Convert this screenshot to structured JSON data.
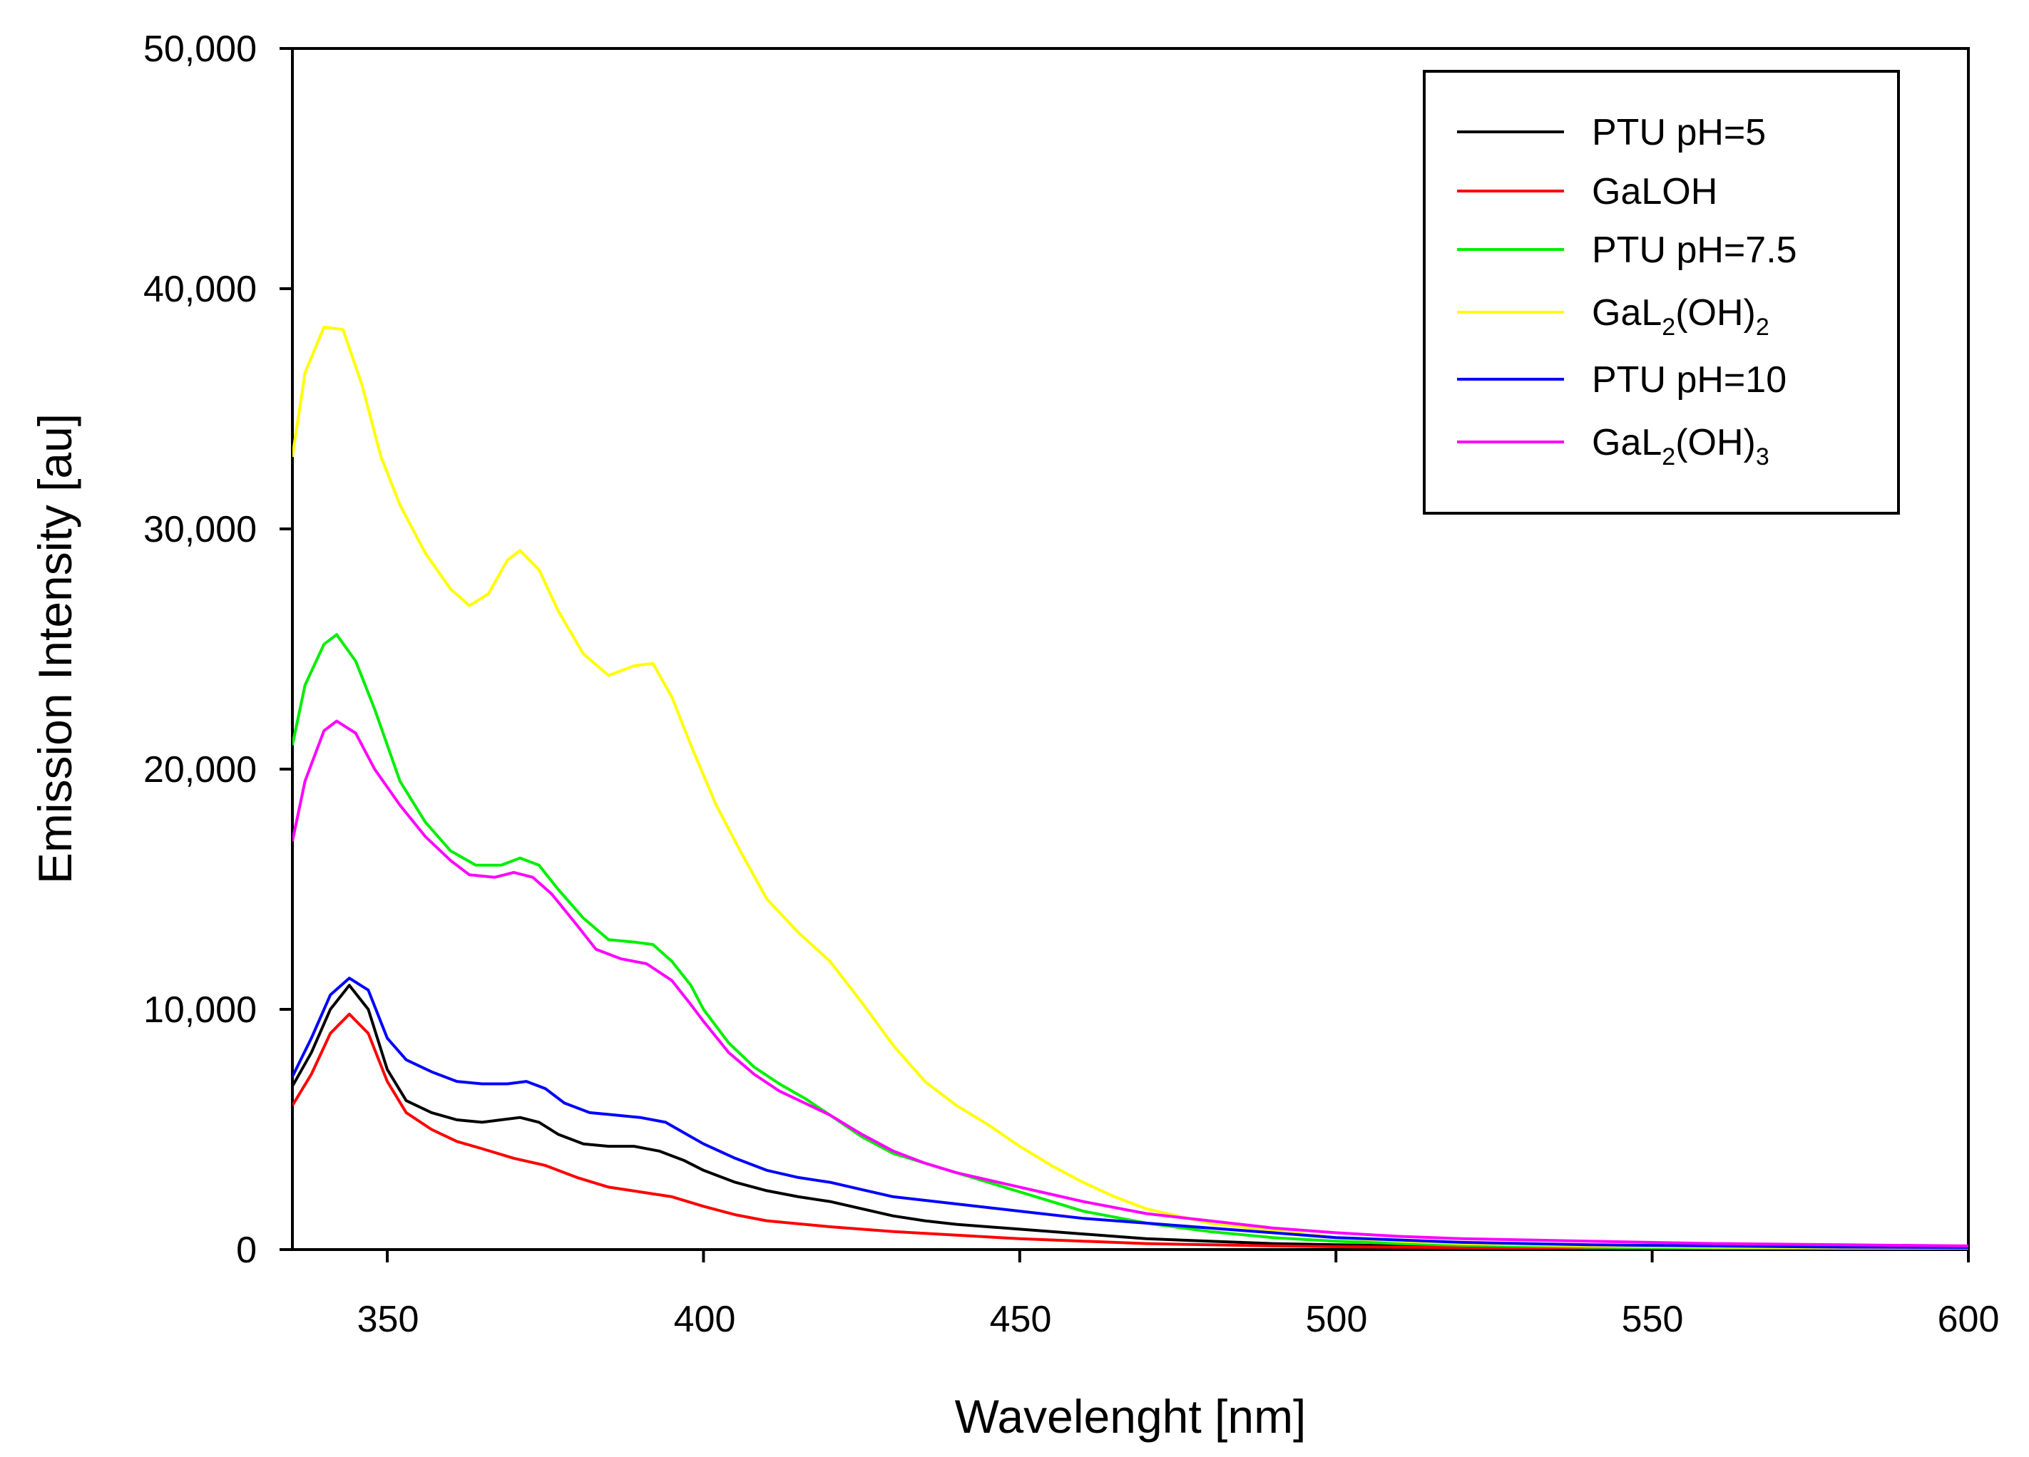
{
  "chart_data": {
    "type": "line",
    "title": "",
    "xlabel": "Wavelenght [nm]",
    "ylabel": "Emission Intensity [au]",
    "xlim": [
      335,
      600
    ],
    "ylim": [
      0,
      50000
    ],
    "x_ticks": [
      350,
      400,
      450,
      500,
      550,
      600
    ],
    "x_tick_labels": [
      "350",
      "400",
      "450",
      "500",
      "550",
      "600"
    ],
    "y_ticks": [
      0,
      10000,
      20000,
      30000,
      40000,
      50000
    ],
    "y_tick_labels": [
      "0",
      "10,000",
      "20,000",
      "30,000",
      "40,000",
      "50,000"
    ],
    "grid": false,
    "legend_position": "top-right",
    "series": [
      {
        "name": "PTU pH=5",
        "legend_main": "PTU pH=5",
        "legend_sub1": "",
        "legend_mid": "",
        "legend_sub2": "",
        "color": "#000000",
        "points": [
          [
            335,
            6800
          ],
          [
            338,
            8200
          ],
          [
            341,
            10000
          ],
          [
            344,
            11000
          ],
          [
            347,
            10000
          ],
          [
            350,
            7500
          ],
          [
            353,
            6200
          ],
          [
            357,
            5700
          ],
          [
            361,
            5400
          ],
          [
            365,
            5300
          ],
          [
            368,
            5400
          ],
          [
            371,
            5500
          ],
          [
            374,
            5300
          ],
          [
            377,
            4800
          ],
          [
            381,
            4400
          ],
          [
            385,
            4300
          ],
          [
            389,
            4300
          ],
          [
            393,
            4100
          ],
          [
            397,
            3700
          ],
          [
            400,
            3300
          ],
          [
            405,
            2800
          ],
          [
            410,
            2450
          ],
          [
            415,
            2200
          ],
          [
            420,
            2000
          ],
          [
            425,
            1700
          ],
          [
            430,
            1400
          ],
          [
            435,
            1200
          ],
          [
            440,
            1050
          ],
          [
            450,
            850
          ],
          [
            460,
            650
          ],
          [
            470,
            450
          ],
          [
            480,
            350
          ],
          [
            490,
            250
          ],
          [
            500,
            200
          ],
          [
            520,
            120
          ],
          [
            540,
            80
          ],
          [
            560,
            50
          ],
          [
            580,
            40
          ],
          [
            600,
            30
          ]
        ]
      },
      {
        "name": "GaLOH",
        "legend_main": "GaLOH",
        "legend_sub1": "",
        "legend_mid": "",
        "legend_sub2": "",
        "color": "#ff0000",
        "points": [
          [
            335,
            6000
          ],
          [
            338,
            7300
          ],
          [
            341,
            9000
          ],
          [
            344,
            9800
          ],
          [
            347,
            9000
          ],
          [
            350,
            7000
          ],
          [
            353,
            5700
          ],
          [
            357,
            5000
          ],
          [
            361,
            4500
          ],
          [
            365,
            4200
          ],
          [
            370,
            3800
          ],
          [
            375,
            3500
          ],
          [
            380,
            3000
          ],
          [
            385,
            2600
          ],
          [
            390,
            2400
          ],
          [
            395,
            2200
          ],
          [
            400,
            1800
          ],
          [
            405,
            1450
          ],
          [
            410,
            1200
          ],
          [
            420,
            950
          ],
          [
            430,
            750
          ],
          [
            440,
            600
          ],
          [
            450,
            450
          ],
          [
            460,
            350
          ],
          [
            470,
            250
          ],
          [
            480,
            200
          ],
          [
            490,
            150
          ],
          [
            500,
            120
          ],
          [
            520,
            80
          ],
          [
            540,
            60
          ],
          [
            560,
            40
          ],
          [
            580,
            30
          ],
          [
            600,
            20
          ]
        ]
      },
      {
        "name": "PTU pH=7.5",
        "legend_main": "PTU pH=7.5",
        "legend_sub1": "",
        "legend_mid": "",
        "legend_sub2": "",
        "color": "#00ee00",
        "points": [
          [
            335,
            21000
          ],
          [
            337,
            23500
          ],
          [
            340,
            25200
          ],
          [
            342,
            25600
          ],
          [
            345,
            24500
          ],
          [
            348,
            22500
          ],
          [
            352,
            19500
          ],
          [
            356,
            17800
          ],
          [
            360,
            16600
          ],
          [
            364,
            16000
          ],
          [
            368,
            16000
          ],
          [
            371,
            16300
          ],
          [
            374,
            16000
          ],
          [
            377,
            15000
          ],
          [
            381,
            13800
          ],
          [
            385,
            12900
          ],
          [
            389,
            12800
          ],
          [
            392,
            12700
          ],
          [
            395,
            12000
          ],
          [
            398,
            11000
          ],
          [
            400,
            10000
          ],
          [
            404,
            8600
          ],
          [
            408,
            7600
          ],
          [
            412,
            6900
          ],
          [
            416,
            6300
          ],
          [
            420,
            5600
          ],
          [
            425,
            4700
          ],
          [
            430,
            4000
          ],
          [
            435,
            3600
          ],
          [
            440,
            3200
          ],
          [
            445,
            2800
          ],
          [
            450,
            2400
          ],
          [
            455,
            2000
          ],
          [
            460,
            1600
          ],
          [
            470,
            1100
          ],
          [
            480,
            750
          ],
          [
            490,
            500
          ],
          [
            500,
            350
          ],
          [
            510,
            250
          ],
          [
            520,
            180
          ],
          [
            540,
            100
          ],
          [
            560,
            60
          ],
          [
            580,
            40
          ],
          [
            600,
            30
          ]
        ]
      },
      {
        "name": "GaL2(OH)2",
        "legend_main": "GaL",
        "legend_sub1": "2",
        "legend_mid": "(OH)",
        "legend_sub2": "2",
        "color": "#ffff00",
        "points": [
          [
            335,
            33000
          ],
          [
            337,
            36500
          ],
          [
            340,
            38400
          ],
          [
            343,
            38300
          ],
          [
            346,
            36000
          ],
          [
            349,
            33000
          ],
          [
            352,
            31000
          ],
          [
            356,
            29000
          ],
          [
            360,
            27500
          ],
          [
            363,
            26800
          ],
          [
            366,
            27300
          ],
          [
            369,
            28700
          ],
          [
            371,
            29100
          ],
          [
            374,
            28300
          ],
          [
            377,
            26600
          ],
          [
            381,
            24800
          ],
          [
            385,
            23900
          ],
          [
            389,
            24300
          ],
          [
            392,
            24400
          ],
          [
            395,
            23000
          ],
          [
            398,
            21000
          ],
          [
            402,
            18500
          ],
          [
            406,
            16500
          ],
          [
            410,
            14600
          ],
          [
            415,
            13200
          ],
          [
            420,
            12000
          ],
          [
            425,
            10300
          ],
          [
            430,
            8500
          ],
          [
            435,
            7000
          ],
          [
            440,
            6000
          ],
          [
            445,
            5200
          ],
          [
            450,
            4300
          ],
          [
            455,
            3500
          ],
          [
            460,
            2800
          ],
          [
            465,
            2200
          ],
          [
            470,
            1700
          ],
          [
            475,
            1400
          ],
          [
            480,
            1100
          ],
          [
            485,
            950
          ],
          [
            490,
            800
          ],
          [
            500,
            500
          ],
          [
            510,
            350
          ],
          [
            520,
            250
          ],
          [
            540,
            150
          ],
          [
            560,
            100
          ],
          [
            580,
            60
          ],
          [
            600,
            40
          ]
        ]
      },
      {
        "name": "PTU pH=10",
        "legend_main": "PTU pH=10",
        "legend_sub1": "",
        "legend_mid": "",
        "legend_sub2": "",
        "color": "#0000ff",
        "points": [
          [
            335,
            7200
          ],
          [
            338,
            8800
          ],
          [
            341,
            10600
          ],
          [
            344,
            11300
          ],
          [
            347,
            10800
          ],
          [
            350,
            8800
          ],
          [
            353,
            7900
          ],
          [
            357,
            7400
          ],
          [
            361,
            7000
          ],
          [
            365,
            6900
          ],
          [
            369,
            6900
          ],
          [
            372,
            7000
          ],
          [
            375,
            6700
          ],
          [
            378,
            6100
          ],
          [
            382,
            5700
          ],
          [
            386,
            5600
          ],
          [
            390,
            5500
          ],
          [
            394,
            5300
          ],
          [
            398,
            4700
          ],
          [
            400,
            4400
          ],
          [
            405,
            3800
          ],
          [
            410,
            3300
          ],
          [
            415,
            3000
          ],
          [
            420,
            2800
          ],
          [
            425,
            2500
          ],
          [
            430,
            2200
          ],
          [
            440,
            1900
          ],
          [
            450,
            1600
          ],
          [
            460,
            1300
          ],
          [
            470,
            1100
          ],
          [
            480,
            900
          ],
          [
            490,
            700
          ],
          [
            500,
            500
          ],
          [
            520,
            300
          ],
          [
            540,
            200
          ],
          [
            560,
            150
          ],
          [
            580,
            100
          ],
          [
            600,
            80
          ]
        ]
      },
      {
        "name": "GaL2(OH)3",
        "legend_main": "GaL",
        "legend_sub1": "2",
        "legend_mid": "(OH)",
        "legend_sub2": "3",
        "color": "#ff00ff",
        "points": [
          [
            335,
            17000
          ],
          [
            337,
            19500
          ],
          [
            340,
            21600
          ],
          [
            342,
            22000
          ],
          [
            345,
            21500
          ],
          [
            348,
            20000
          ],
          [
            352,
            18500
          ],
          [
            356,
            17200
          ],
          [
            360,
            16200
          ],
          [
            363,
            15600
          ],
          [
            367,
            15500
          ],
          [
            370,
            15700
          ],
          [
            373,
            15500
          ],
          [
            376,
            14800
          ],
          [
            380,
            13500
          ],
          [
            383,
            12500
          ],
          [
            387,
            12100
          ],
          [
            391,
            11900
          ],
          [
            395,
            11200
          ],
          [
            398,
            10200
          ],
          [
            400,
            9500
          ],
          [
            404,
            8200
          ],
          [
            408,
            7300
          ],
          [
            412,
            6600
          ],
          [
            416,
            6100
          ],
          [
            420,
            5600
          ],
          [
            425,
            4800
          ],
          [
            430,
            4100
          ],
          [
            435,
            3600
          ],
          [
            440,
            3200
          ],
          [
            445,
            2900
          ],
          [
            450,
            2600
          ],
          [
            455,
            2300
          ],
          [
            460,
            2000
          ],
          [
            470,
            1500
          ],
          [
            480,
            1200
          ],
          [
            490,
            900
          ],
          [
            500,
            700
          ],
          [
            510,
            550
          ],
          [
            520,
            450
          ],
          [
            540,
            350
          ],
          [
            560,
            250
          ],
          [
            580,
            200
          ],
          [
            600,
            150
          ]
        ]
      }
    ]
  }
}
